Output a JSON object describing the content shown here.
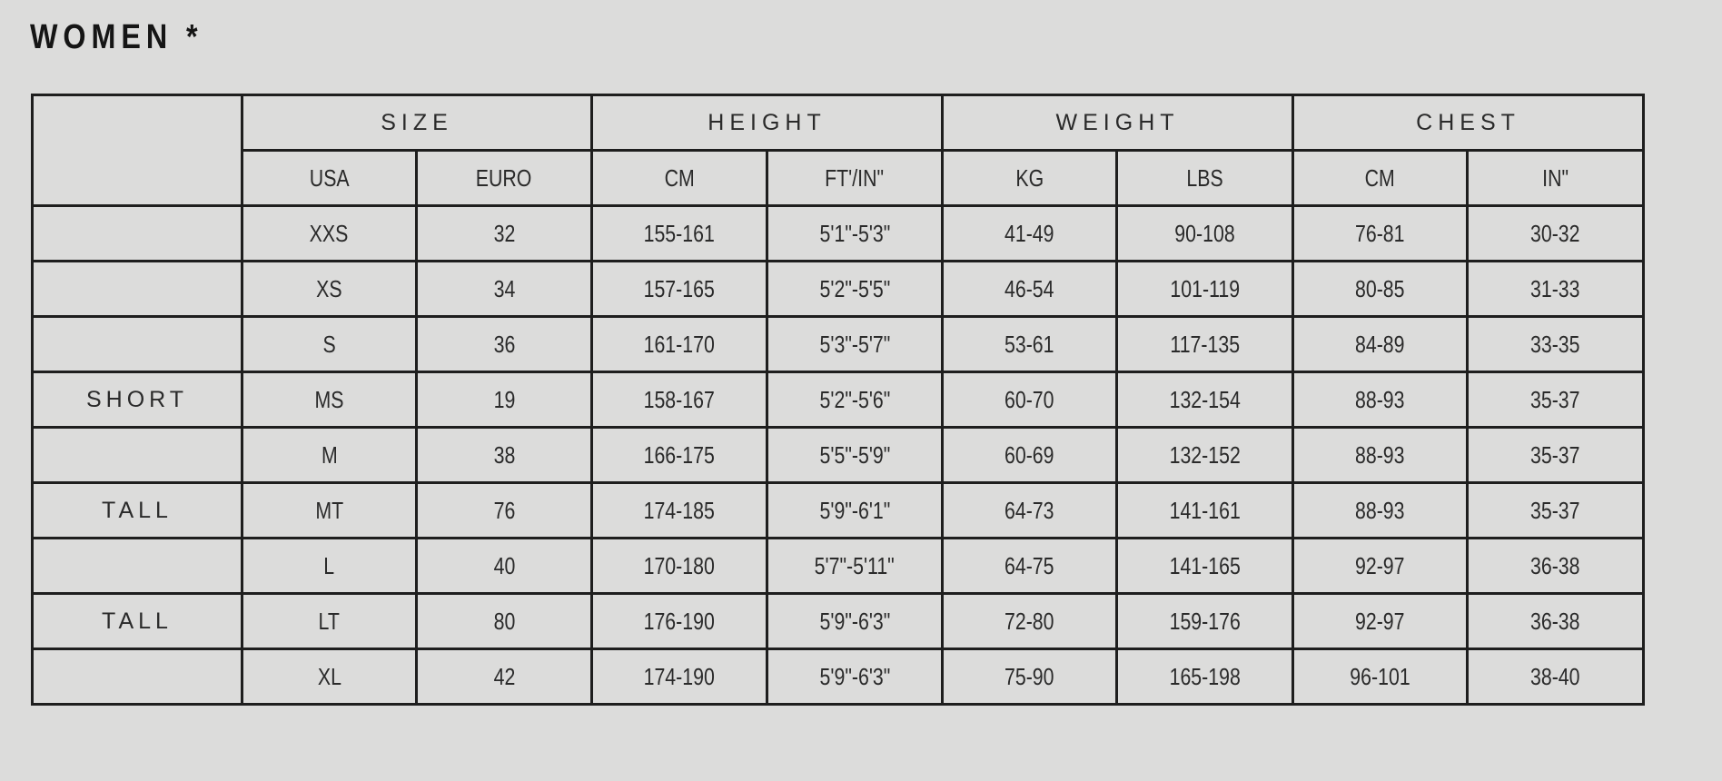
{
  "title": "WOMEN *",
  "table": {
    "groups": [
      "SIZE",
      "HEIGHT",
      "WEIGHT",
      "CHEST"
    ],
    "subheaders": [
      "USA",
      "EURO",
      "CM",
      "FT'/IN\"",
      "KG",
      "LBS",
      "CM",
      "IN\""
    ],
    "rows": [
      {
        "label": "",
        "cells": [
          "XXS",
          "32",
          "155-161",
          "5'1\"-5'3\"",
          "41-49",
          "90-108",
          "76-81",
          "30-32"
        ]
      },
      {
        "label": "",
        "cells": [
          "XS",
          "34",
          "157-165",
          "5'2\"-5'5\"",
          "46-54",
          "101-119",
          "80-85",
          "31-33"
        ]
      },
      {
        "label": "",
        "cells": [
          "S",
          "36",
          "161-170",
          "5'3\"-5'7\"",
          "53-61",
          "117-135",
          "84-89",
          "33-35"
        ]
      },
      {
        "label": "SHORT",
        "cells": [
          "MS",
          "19",
          "158-167",
          "5'2\"-5'6\"",
          "60-70",
          "132-154",
          "88-93",
          "35-37"
        ]
      },
      {
        "label": "",
        "cells": [
          "M",
          "38",
          "166-175",
          "5'5\"-5'9\"",
          "60-69",
          "132-152",
          "88-93",
          "35-37"
        ]
      },
      {
        "label": "TALL",
        "cells": [
          "MT",
          "76",
          "174-185",
          "5'9\"-6'1\"",
          "64-73",
          "141-161",
          "88-93",
          "35-37"
        ]
      },
      {
        "label": "",
        "cells": [
          "L",
          "40",
          "170-180",
          "5'7\"-5'11\"",
          "64-75",
          "141-165",
          "92-97",
          "36-38"
        ]
      },
      {
        "label": "TALL",
        "cells": [
          "LT",
          "80",
          "176-190",
          "5'9\"-6'3\"",
          "72-80",
          "159-176",
          "92-97",
          "36-38"
        ]
      },
      {
        "label": "",
        "cells": [
          "XL",
          "42",
          "174-190",
          "5'9\"-6'3\"",
          "75-90",
          "165-198",
          "96-101",
          "38-40"
        ]
      }
    ]
  }
}
